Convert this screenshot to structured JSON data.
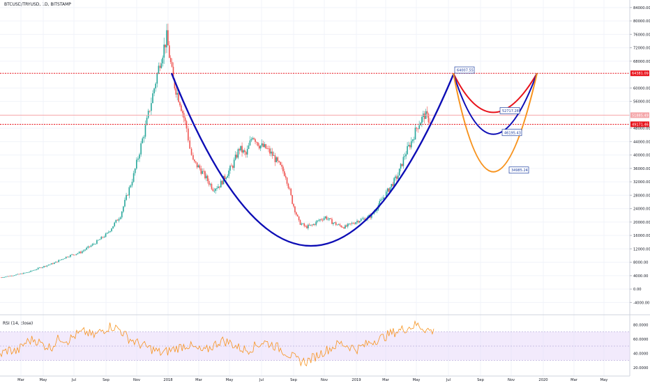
{
  "header": {
    "symbol_title": "BTCUSD/TRYUSD, 1D, BITSTAMP"
  },
  "rsi_panel": {
    "label": "RSI (14, close)",
    "ticks": [
      "80.0000",
      "60.0000",
      "40.0000",
      "20.0000"
    ]
  },
  "colors": {
    "up_candle": "#26a69a",
    "down_candle": "#ef5350",
    "cup_blue": "#0d0db5",
    "projection_red": "#e8121b",
    "projection_orange": "#f7931e",
    "level_line": "#e8121b",
    "rsi_line": "#f7931e",
    "rsi_band": "#e8d8fa"
  },
  "chart_data": {
    "type": "line",
    "title": "BTCUSD/TRYUSD, 1D, BITSTAMP",
    "y_axis": {
      "ticks": [
        "84000.00",
        "80000.00",
        "76000.00",
        "72000.00",
        "68000.00",
        "60000.00",
        "56000.00",
        "48000.00",
        "44000.00",
        "40000.00",
        "36000.00",
        "32000.00",
        "28000.00",
        "24000.00",
        "20000.00",
        "16000.00",
        "12000.00",
        "8000.00",
        "4000.00",
        "0.00",
        "-4000.00"
      ],
      "range": [
        -6000,
        85000
      ]
    },
    "x_axis": {
      "ticks": [
        "Mar",
        "May",
        "Jul",
        "Sep",
        "Nov",
        "2018",
        "Mar",
        "May",
        "Jul",
        "Sep",
        "Nov",
        "2019",
        "Mar",
        "May",
        "Jul",
        "Sep",
        "Nov",
        "2020",
        "Mar",
        "May"
      ]
    },
    "levels": [
      {
        "label": "64381.09",
        "value": 64381.09,
        "style": "dotted-red"
      },
      {
        "label": "51885.49",
        "value": 51885.49,
        "style": "solid-pink"
      },
      {
        "label": "49171.46",
        "value": 49171.46,
        "style": "dotted-red"
      }
    ],
    "annotations": [
      {
        "label": "64007.55",
        "value": 64007.55
      },
      {
        "label": "52717.28",
        "value": 52717.28
      },
      {
        "label": "46195.43",
        "value": 46195.43
      },
      {
        "label": "34985.24",
        "value": 34985.24
      }
    ],
    "price_series": {
      "t": [
        0,
        4,
        8,
        12,
        16,
        20,
        24,
        28,
        32,
        36,
        40,
        44,
        48,
        50,
        52,
        54,
        56,
        57,
        58,
        60,
        62,
        64,
        66,
        68,
        70,
        72,
        74,
        76,
        78,
        80,
        82,
        84,
        86,
        88,
        90,
        92,
        94,
        96,
        98,
        100,
        102,
        104,
        106,
        108,
        110,
        112,
        114,
        116,
        118,
        120,
        122,
        124,
        126,
        128,
        130
      ],
      "close": [
        3500,
        4200,
        5000,
        6500,
        7800,
        9800,
        11000,
        13500,
        16500,
        22000,
        34000,
        50000,
        68000,
        75000,
        62000,
        56000,
        48000,
        42000,
        38000,
        36000,
        33000,
        30000,
        31000,
        34000,
        37000,
        42000,
        40000,
        46000,
        43000,
        42000,
        40000,
        37000,
        34000,
        26000,
        20000,
        18500,
        19000,
        20500,
        21500,
        20000,
        19000,
        18500,
        19500,
        20500,
        21000,
        22000,
        25000,
        28000,
        31000,
        34000,
        40000,
        44000,
        49000,
        52000,
        50000
      ]
    },
    "cup_curve": {
      "from": {
        "value": 64381.09
      },
      "bottom": {
        "value": 16000
      },
      "to": {
        "value": 64007.55
      }
    },
    "projections": [
      {
        "color": "red",
        "bottom_value": 52717.28
      },
      {
        "color": "blue",
        "bottom_value": 46195.43
      },
      {
        "color": "orange",
        "bottom_value": 34985.24
      }
    ],
    "rsi": {
      "ylim": [
        10,
        90
      ],
      "band": [
        30,
        70
      ],
      "values": [
        38,
        45,
        42,
        55,
        60,
        52,
        48,
        62,
        58,
        66,
        70,
        64,
        72,
        78,
        74,
        62,
        55,
        50,
        45,
        40,
        44,
        48,
        52,
        46,
        42,
        50,
        58,
        55,
        48,
        44,
        50,
        56,
        52,
        46,
        38,
        30,
        28,
        35,
        42,
        48,
        54,
        50,
        46,
        52,
        58,
        62,
        68,
        72,
        76,
        80,
        74,
        70
      ]
    }
  }
}
